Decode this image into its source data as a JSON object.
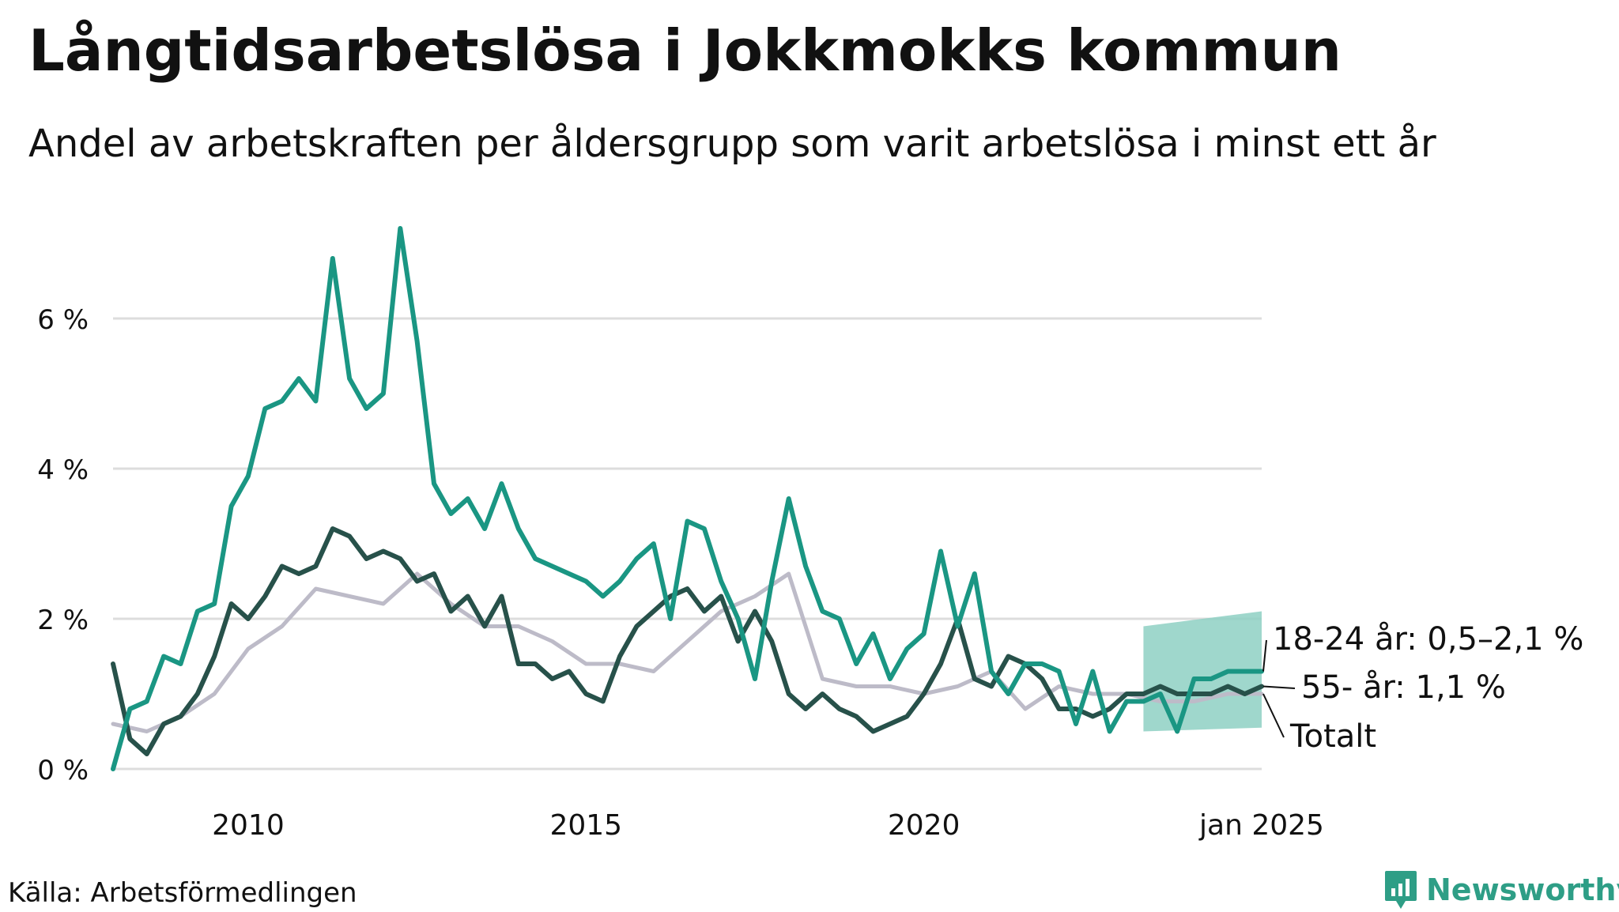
{
  "title": "Långtidsarbetslösa i Jokkmokks kommun",
  "subtitle": "Andel av arbetskraften per åldersgrupp som varit arbetslösa i minst ett år",
  "source": "Källa: Arbetsförmedlingen",
  "brand": {
    "name": "Newsworthy",
    "icon": "newsworthy-logo-icon",
    "color": "#2e9e86"
  },
  "colors": {
    "young": "#1a9683",
    "old": "#27514a",
    "total": "#bdbbc8",
    "band": "#8ed0c3",
    "grid": "#dddddd"
  },
  "chart_data": {
    "type": "line",
    "title": "Långtidsarbetslösa i Jokkmokks kommun",
    "ylabel": "",
    "xlabel": "",
    "ylim": [
      0,
      7.2
    ],
    "xlim": [
      2008.0,
      2025.0
    ],
    "y_ticks": [
      {
        "value": 0,
        "label": "0 %"
      },
      {
        "value": 2,
        "label": "2 %"
      },
      {
        "value": 4,
        "label": "4 %"
      },
      {
        "value": 6,
        "label": "6 %"
      }
    ],
    "x_ticks": [
      {
        "value": 2010,
        "label": "2010"
      },
      {
        "value": 2015,
        "label": "2015"
      },
      {
        "value": 2020,
        "label": "2020"
      },
      {
        "value": 2025,
        "label": "jan 2025"
      }
    ],
    "grid": true,
    "series": [
      {
        "name": "Totalt",
        "label": "Totalt",
        "color": "#bdbbc8",
        "x": [
          2008.0,
          2008.5,
          2009.0,
          2009.5,
          2010.0,
          2010.5,
          2011.0,
          2011.5,
          2012.0,
          2012.5,
          2013.0,
          2013.5,
          2014.0,
          2014.5,
          2015.0,
          2015.5,
          2016.0,
          2016.5,
          2017.0,
          2017.5,
          2018.0,
          2018.5,
          2019.0,
          2019.5,
          2020.0,
          2020.5,
          2021.0,
          2021.5,
          2022.0,
          2022.5,
          2023.0,
          2023.5,
          2024.0,
          2024.5,
          2025.0
        ],
        "values": [
          0.6,
          0.5,
          0.7,
          1.0,
          1.6,
          1.9,
          2.4,
          2.3,
          2.2,
          2.6,
          2.2,
          1.9,
          1.9,
          1.7,
          1.4,
          1.4,
          1.3,
          1.7,
          2.1,
          2.3,
          2.6,
          1.2,
          1.1,
          1.1,
          1.0,
          1.1,
          1.3,
          0.8,
          1.1,
          1.0,
          1.0,
          0.9,
          0.9,
          1.0,
          1.0
        ]
      },
      {
        "name": "55- år",
        "label": "55- år: 1,1 %",
        "color": "#27514a",
        "x": [
          2008.0,
          2008.25,
          2008.5,
          2008.75,
          2009.0,
          2009.25,
          2009.5,
          2009.75,
          2010.0,
          2010.25,
          2010.5,
          2010.75,
          2011.0,
          2011.25,
          2011.5,
          2011.75,
          2012.0,
          2012.25,
          2012.5,
          2012.75,
          2013.0,
          2013.25,
          2013.5,
          2013.75,
          2014.0,
          2014.25,
          2014.5,
          2014.75,
          2015.0,
          2015.25,
          2015.5,
          2015.75,
          2016.0,
          2016.25,
          2016.5,
          2016.75,
          2017.0,
          2017.25,
          2017.5,
          2017.75,
          2018.0,
          2018.25,
          2018.5,
          2018.75,
          2019.0,
          2019.25,
          2019.5,
          2019.75,
          2020.0,
          2020.25,
          2020.5,
          2020.75,
          2021.0,
          2021.25,
          2021.5,
          2021.75,
          2022.0,
          2022.25,
          2022.5,
          2022.75,
          2023.0,
          2023.25,
          2023.5,
          2023.75,
          2024.0,
          2024.25,
          2024.5,
          2024.75,
          2025.0
        ],
        "values": [
          1.4,
          0.4,
          0.2,
          0.6,
          0.7,
          1.0,
          1.5,
          2.2,
          2.0,
          2.3,
          2.7,
          2.6,
          2.7,
          3.2,
          3.1,
          2.8,
          2.9,
          2.8,
          2.5,
          2.6,
          2.1,
          2.3,
          1.9,
          2.3,
          1.4,
          1.4,
          1.2,
          1.3,
          1.0,
          0.9,
          1.5,
          1.9,
          2.1,
          2.3,
          2.4,
          2.1,
          2.3,
          1.7,
          2.1,
          1.7,
          1.0,
          0.8,
          1.0,
          0.8,
          0.7,
          0.5,
          0.6,
          0.7,
          1.0,
          1.4,
          2.0,
          1.2,
          1.1,
          1.5,
          1.4,
          1.2,
          0.8,
          0.8,
          0.7,
          0.8,
          1.0,
          1.0,
          1.1,
          1.0,
          1.0,
          1.0,
          1.1,
          1.0,
          1.1
        ]
      },
      {
        "name": "18-24 år",
        "label": "18-24 år: 0,5–2,1 %",
        "color": "#1a9683",
        "x": [
          2008.0,
          2008.25,
          2008.5,
          2008.75,
          2009.0,
          2009.25,
          2009.5,
          2009.75,
          2010.0,
          2010.25,
          2010.5,
          2010.75,
          2011.0,
          2011.25,
          2011.5,
          2011.75,
          2012.0,
          2012.25,
          2012.5,
          2012.75,
          2013.0,
          2013.25,
          2013.5,
          2013.75,
          2014.0,
          2014.25,
          2014.5,
          2014.75,
          2015.0,
          2015.25,
          2015.5,
          2015.75,
          2016.0,
          2016.25,
          2016.5,
          2016.75,
          2017.0,
          2017.25,
          2017.5,
          2017.75,
          2018.0,
          2018.25,
          2018.5,
          2018.75,
          2019.0,
          2019.25,
          2019.5,
          2019.75,
          2020.0,
          2020.25,
          2020.5,
          2020.75,
          2021.0,
          2021.25,
          2021.5,
          2021.75,
          2022.0,
          2022.25,
          2022.5,
          2022.75,
          2023.0,
          2023.25,
          2023.5,
          2023.75,
          2024.0,
          2024.25,
          2024.5,
          2024.75,
          2025.0
        ],
        "values": [
          0.0,
          0.8,
          0.9,
          1.5,
          1.4,
          2.1,
          2.2,
          3.5,
          3.9,
          4.8,
          4.9,
          5.2,
          4.9,
          6.8,
          5.2,
          4.8,
          5.0,
          7.2,
          5.7,
          3.8,
          3.4,
          3.6,
          3.2,
          3.8,
          3.2,
          2.8,
          2.7,
          2.6,
          2.5,
          2.3,
          2.5,
          2.8,
          3.0,
          2.0,
          3.3,
          3.2,
          2.5,
          2.0,
          1.2,
          2.5,
          3.6,
          2.7,
          2.1,
          2.0,
          1.4,
          1.8,
          1.2,
          1.6,
          1.8,
          2.9,
          1.9,
          2.6,
          1.3,
          1.0,
          1.4,
          1.4,
          1.3,
          0.6,
          1.3,
          0.5,
          0.9,
          0.9,
          1.0,
          0.5,
          1.2,
          1.2,
          1.3,
          1.3,
          1.3
        ]
      }
    ],
    "forecast_band": {
      "series": "18-24 år",
      "x": [
        2023.25,
        2025.0
      ],
      "lower": [
        0.5,
        0.55
      ],
      "upper": [
        1.9,
        2.1
      ]
    }
  }
}
